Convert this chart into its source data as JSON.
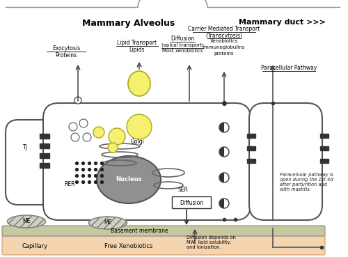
{
  "title_left": "Mammary Alveolus",
  "title_right": "Mammary duct >>>",
  "bg_color": "#ffffff",
  "capillary_color": "#f5d5b0",
  "cell_fill": "#ffffff",
  "cell_edge": "#555555",
  "nucleus_color": "#888888",
  "lipid_color": "#f5f070",
  "basement_color": "#c8c8a0",
  "me_color": "#d0d0c0",
  "labels": {
    "exocytosis_title": "Exocytosis",
    "exocytosis_sub": "Proteins",
    "lipid_title": "Lipid Transport",
    "lipid_sub": "Lipids",
    "diffusion_apical_title": "Diffusion",
    "diffusion_apical_sub1": "(apical transport)",
    "diffusion_apical_sub2": "Most xenobiotics",
    "carrier_title": "Carrier Mediated Transport",
    "carrier_sub1": "(Transcytosis)",
    "carrier_sub2": "Xenobiotics",
    "carrier_sub3": "Immunoglobulins",
    "carrier_sub4": "proteins",
    "paracellular": "Paracellular Pathway",
    "paracellular_note": "Paracellular pathway is\nopen during the 1st 4d\nafter parturition and\nwith mastitis.",
    "rer": "RER",
    "ser": "SER",
    "golgi": "Golgi",
    "nucleus": "Nucleus",
    "tj": "TJ",
    "me1": "ME",
    "me2": "ME",
    "basement": "Basement membrane",
    "capillary": "Capillary",
    "free_xeno": "Free Xenobiotics",
    "diffusion_box": "Diffusion",
    "diffusion_note": "Diffusion depends on\nMW, lipid solubility,\nand ionization."
  }
}
